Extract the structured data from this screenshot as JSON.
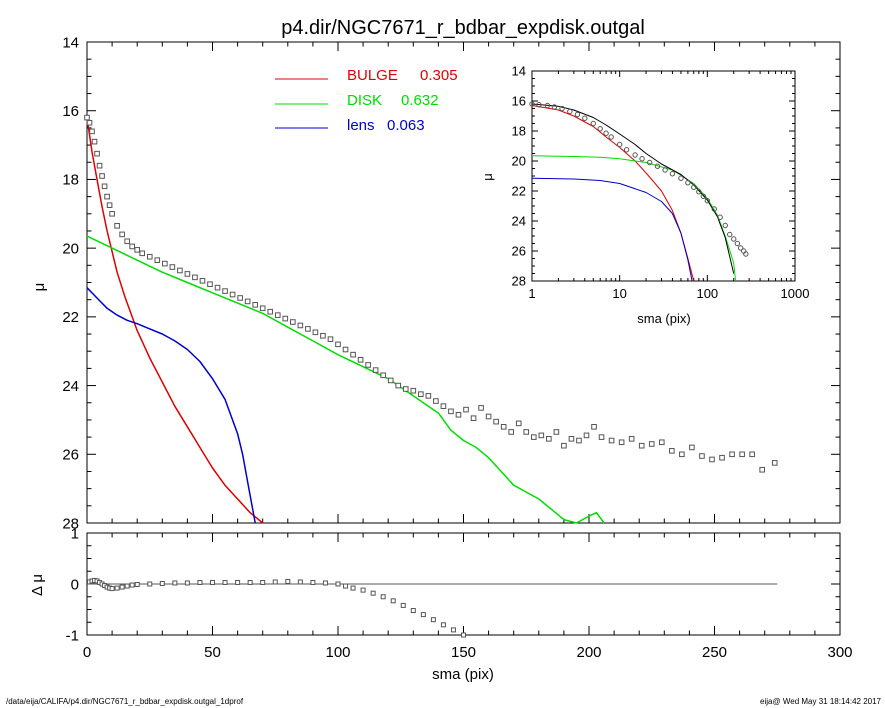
{
  "footer": {
    "left": "/data/eija/CALIFA/p4.dir/NGC7671_r_bdbar_expdisk.outgal_1dprof",
    "right": "eija@  Wed May 31 18:14:42 2017"
  },
  "colors": {
    "bulge": "#dd0000",
    "disk": "#00dd00",
    "lens": "#0000cc",
    "data": "#555555",
    "total": "#000000"
  },
  "chart_data": [
    {
      "id": "main",
      "type": "scatter",
      "title": "p4.dir/NGC7671_r_bdbar_expdisk.outgal",
      "xlabel": "",
      "ylabel": "μ",
      "xlim": [
        0,
        300
      ],
      "ylim": [
        28,
        14
      ],
      "y_inverted": true,
      "x_ticks": [
        0,
        50,
        100,
        150,
        200,
        250,
        300
      ],
      "y_ticks": [
        14,
        16,
        18,
        20,
        22,
        24,
        26,
        28
      ],
      "legend": [
        {
          "label": "BULGE",
          "value": "0.305",
          "color": "#dd0000"
        },
        {
          "label": "DISK",
          "value": "0.632",
          "color": "#00dd00"
        },
        {
          "label": "lens",
          "value": "0.063",
          "color": "#0000cc"
        }
      ],
      "series": [
        {
          "key": "bulge",
          "color": "#dd0000",
          "x": [
            0,
            2,
            4,
            6,
            8,
            10,
            12,
            15,
            20,
            25,
            30,
            35,
            40,
            45,
            50,
            55,
            60,
            65,
            70
          ],
          "y": [
            16.2,
            17.2,
            18.0,
            18.8,
            19.5,
            20.1,
            20.7,
            21.4,
            22.4,
            23.2,
            23.9,
            24.6,
            25.2,
            25.8,
            26.4,
            26.9,
            27.3,
            27.7,
            28.0
          ]
        },
        {
          "key": "disk",
          "color": "#00dd00",
          "x": [
            0,
            10,
            20,
            30,
            40,
            50,
            60,
            70,
            80,
            90,
            100,
            110,
            120,
            130,
            140,
            145,
            150,
            155,
            160,
            165,
            170,
            175,
            180,
            185,
            190,
            195,
            200,
            203,
            206
          ],
          "y": [
            19.65,
            20.0,
            20.35,
            20.7,
            21.0,
            21.3,
            21.6,
            21.9,
            22.3,
            22.7,
            23.1,
            23.45,
            23.8,
            24.3,
            24.8,
            25.3,
            25.6,
            25.8,
            26.1,
            26.5,
            26.9,
            27.1,
            27.3,
            27.6,
            27.9,
            28.0,
            27.8,
            27.7,
            28.0
          ]
        },
        {
          "key": "lens",
          "color": "#0000cc",
          "x": [
            0,
            4,
            8,
            12,
            16,
            20,
            25,
            30,
            35,
            40,
            45,
            50,
            55,
            60,
            62,
            64,
            66,
            67
          ],
          "y": [
            21.15,
            21.45,
            21.75,
            21.95,
            22.1,
            22.2,
            22.35,
            22.5,
            22.7,
            22.95,
            23.3,
            23.8,
            24.4,
            25.4,
            26.0,
            26.8,
            27.6,
            28.0
          ]
        },
        {
          "key": "data",
          "color": "#555555",
          "marker": "square",
          "x": [
            0,
            1,
            2,
            3,
            4,
            5,
            6,
            7,
            8,
            9,
            10,
            12,
            14,
            16,
            18,
            20,
            22,
            25,
            28,
            31,
            34,
            37,
            40,
            43,
            46,
            49,
            52,
            55,
            58,
            61,
            64,
            67,
            70,
            73,
            76,
            79,
            82,
            85,
            88,
            91,
            94,
            97,
            100,
            103,
            106,
            109,
            112,
            115,
            118,
            121,
            124,
            127,
            130,
            133,
            136,
            139,
            142,
            145,
            148,
            151,
            154,
            157,
            160,
            163,
            166,
            169,
            172,
            175,
            178,
            181,
            184,
            187,
            190,
            193,
            196,
            199,
            202,
            205,
            209,
            213,
            217,
            221,
            225,
            229,
            233,
            237,
            241,
            245,
            249,
            253,
            257,
            261,
            265,
            269,
            274
          ],
          "y": [
            16.2,
            16.35,
            16.6,
            16.9,
            17.25,
            17.6,
            17.9,
            18.2,
            18.5,
            18.75,
            19.0,
            19.35,
            19.6,
            19.8,
            19.95,
            20.05,
            20.15,
            20.25,
            20.35,
            20.45,
            20.55,
            20.65,
            20.75,
            20.85,
            20.95,
            21.05,
            21.15,
            21.25,
            21.35,
            21.45,
            21.55,
            21.65,
            21.75,
            21.85,
            21.95,
            22.05,
            22.15,
            22.25,
            22.35,
            22.45,
            22.55,
            22.65,
            22.8,
            22.95,
            23.1,
            23.25,
            23.4,
            23.55,
            23.7,
            23.85,
            24.0,
            24.1,
            24.15,
            24.25,
            24.3,
            24.45,
            24.6,
            24.75,
            24.85,
            24.7,
            24.95,
            24.65,
            24.9,
            25.05,
            25.2,
            25.35,
            25.1,
            25.35,
            25.5,
            25.45,
            25.55,
            25.35,
            25.75,
            25.55,
            25.6,
            25.45,
            25.2,
            25.5,
            25.6,
            25.65,
            25.55,
            25.75,
            25.7,
            25.65,
            25.9,
            26.0,
            25.8,
            26.05,
            26.15,
            26.1,
            26.0,
            26.0,
            26.0,
            26.45,
            26.25
          ]
        }
      ]
    },
    {
      "id": "residual",
      "type": "scatter",
      "xlabel": "sma (pix)",
      "ylabel": "Δ μ",
      "xlim": [
        0,
        300
      ],
      "ylim": [
        -1,
        1
      ],
      "x_ticks": [
        0,
        50,
        100,
        150,
        200,
        250,
        300
      ],
      "y_ticks": [
        -1,
        0,
        1
      ],
      "zero_line_to": 275,
      "series": [
        {
          "key": "residual",
          "color": "#555555",
          "marker": "square",
          "x": [
            1,
            2,
            3,
            4,
            5,
            6,
            7,
            8,
            9,
            10,
            12,
            14,
            16,
            18,
            20,
            25,
            30,
            35,
            40,
            45,
            50,
            55,
            60,
            65,
            70,
            75,
            80,
            85,
            90,
            95,
            100,
            103,
            106,
            110,
            114,
            118,
            122,
            126,
            130,
            134,
            138,
            142,
            146,
            150
          ],
          "y": [
            0.04,
            0.06,
            0.07,
            0.06,
            0.03,
            0.0,
            -0.03,
            -0.06,
            -0.08,
            -0.09,
            -0.08,
            -0.06,
            -0.04,
            -0.02,
            -0.01,
            0.0,
            0.01,
            0.02,
            0.02,
            0.03,
            0.03,
            0.03,
            0.03,
            0.03,
            0.03,
            0.04,
            0.05,
            0.04,
            0.03,
            0.02,
            0.0,
            -0.04,
            -0.08,
            -0.12,
            -0.18,
            -0.25,
            -0.33,
            -0.42,
            -0.52,
            -0.6,
            -0.7,
            -0.8,
            -0.9,
            -1.0
          ]
        }
      ]
    },
    {
      "id": "inset",
      "type": "scatter",
      "xlabel": "sma (pix)",
      "ylabel": "μ",
      "x_scale": "log",
      "xlim": [
        1,
        1000
      ],
      "ylim": [
        28,
        14
      ],
      "y_inverted": true,
      "x_ticks": [
        1,
        10,
        100,
        1000
      ],
      "y_ticks": [
        14,
        16,
        18,
        20,
        22,
        24,
        26,
        28
      ],
      "series": [
        {
          "key": "bulge",
          "color": "#dd0000",
          "x": [
            1,
            2,
            3,
            5,
            7,
            10,
            15,
            20,
            30,
            40,
            50,
            60,
            70
          ],
          "y": [
            16.3,
            16.6,
            17.0,
            17.7,
            18.4,
            19.1,
            20.0,
            20.8,
            22.0,
            23.3,
            24.8,
            26.5,
            28.0
          ]
        },
        {
          "key": "disk",
          "color": "#00dd00",
          "x": [
            1,
            3,
            6,
            10,
            20,
            40,
            70,
            100,
            130,
            160,
            200,
            210
          ],
          "y": [
            19.65,
            19.7,
            19.75,
            19.85,
            20.1,
            20.6,
            21.5,
            22.5,
            23.6,
            25.0,
            26.8,
            28.0
          ]
        },
        {
          "key": "lens",
          "color": "#0000cc",
          "x": [
            1,
            3,
            6,
            10,
            20,
            30,
            40,
            50,
            60,
            67
          ],
          "y": [
            21.15,
            21.2,
            21.3,
            21.5,
            22.1,
            22.7,
            23.5,
            24.8,
            26.6,
            28.0
          ]
        },
        {
          "key": "total",
          "color": "#000000",
          "x": [
            1,
            2,
            3,
            5,
            7,
            10,
            15,
            20,
            30,
            50,
            70,
            100,
            130,
            160,
            200
          ],
          "y": [
            16.2,
            16.35,
            16.6,
            17.1,
            17.6,
            18.2,
            18.9,
            19.5,
            20.2,
            20.9,
            21.6,
            22.6,
            23.7,
            25.1,
            27.5
          ]
        },
        {
          "key": "data",
          "color": "#555555",
          "marker": "circle",
          "x": [
            1,
            1.2,
            1.5,
            1.8,
            2.2,
            2.7,
            3.3,
            4,
            5,
            6,
            7,
            8,
            10,
            12,
            15,
            18,
            22,
            27,
            33,
            40,
            50,
            60,
            70,
            80,
            90,
            100,
            120,
            140,
            160,
            180,
            200,
            220,
            240,
            260,
            275
          ],
          "y": [
            16.2,
            16.25,
            16.3,
            16.4,
            16.5,
            16.7,
            16.9,
            17.15,
            17.5,
            17.85,
            18.15,
            18.4,
            18.9,
            19.25,
            19.6,
            19.85,
            20.1,
            20.35,
            20.6,
            20.85,
            21.15,
            21.45,
            21.75,
            22.05,
            22.35,
            22.65,
            23.2,
            23.75,
            24.3,
            24.9,
            25.2,
            25.5,
            25.8,
            26.0,
            26.2
          ]
        }
      ]
    }
  ]
}
